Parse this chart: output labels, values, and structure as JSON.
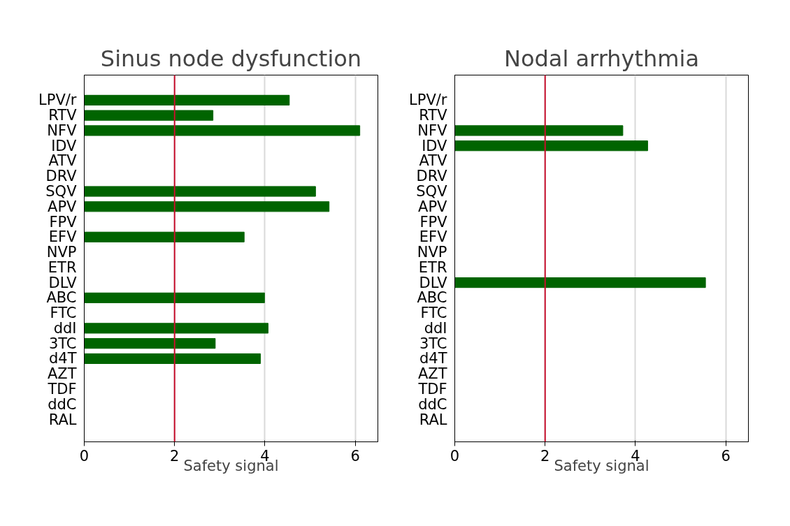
{
  "chart_data": [
    {
      "type": "bar",
      "orientation": "horizontal",
      "title": "Sinus node dysfunction",
      "xlabel": "Safety signal",
      "categories": [
        "LPV/r",
        "RTV",
        "NFV",
        "IDV",
        "ATV",
        "DRV",
        "SQV",
        "APV",
        "FPV",
        "EFV",
        "NVP",
        "ETR",
        "DLV",
        "ABC",
        "FTC",
        "ddI",
        "3TC",
        "d4T",
        "AZT",
        "TDF",
        "ddC",
        "RAL"
      ],
      "values": [
        4.54,
        2.85,
        6.1,
        null,
        null,
        null,
        5.12,
        5.42,
        null,
        3.54,
        null,
        null,
        null,
        3.99,
        null,
        4.07,
        2.9,
        3.9,
        null,
        null,
        null,
        null
      ],
      "color": "#006400",
      "xlim": [
        0,
        6.5
      ],
      "xticks": [
        0,
        2,
        4,
        6
      ],
      "grid": "x",
      "ref_lines": [
        {
          "axis": "x",
          "value": 2,
          "color": "#c8102e"
        }
      ]
    },
    {
      "type": "bar",
      "orientation": "horizontal",
      "title": "Nodal arrhythmia",
      "xlabel": "Safety signal",
      "categories": [
        "LPV/r",
        "RTV",
        "NFV",
        "IDV",
        "ATV",
        "DRV",
        "SQV",
        "APV",
        "FPV",
        "EFV",
        "NVP",
        "ETR",
        "DLV",
        "ABC",
        "FTC",
        "ddI",
        "3TC",
        "d4T",
        "AZT",
        "TDF",
        "ddC",
        "RAL"
      ],
      "values": [
        null,
        null,
        3.72,
        4.27,
        null,
        null,
        null,
        null,
        null,
        null,
        null,
        null,
        5.55,
        null,
        null,
        null,
        null,
        null,
        null,
        null,
        null,
        null
      ],
      "color": "#006400",
      "xlim": [
        0,
        6.5
      ],
      "xticks": [
        0,
        2,
        4,
        6
      ],
      "grid": "x",
      "ref_lines": [
        {
          "axis": "x",
          "value": 2,
          "color": "#c8102e"
        }
      ]
    }
  ]
}
